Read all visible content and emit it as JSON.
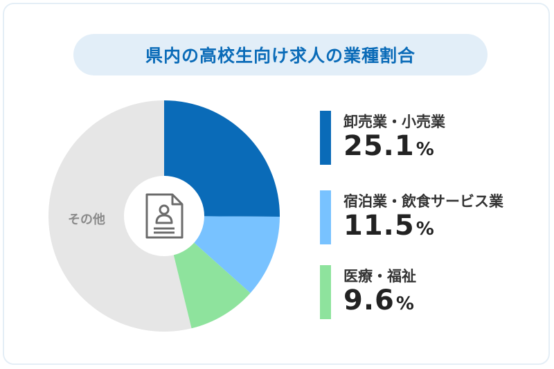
{
  "title": "県内の高校生向け求人の業種割合",
  "chart_data": {
    "type": "pie",
    "title": "県内の高校生向け求人の業種割合",
    "categories": [
      "卸売業・小売業",
      "宿泊業・飲食サービス業",
      "医療・福祉",
      "その他"
    ],
    "values": [
      25.1,
      11.5,
      9.6,
      53.8
    ],
    "unit": "%",
    "colors": [
      "#0a6bb8",
      "#78c2ff",
      "#8ee39d",
      "#e6e6e6"
    ],
    "legend_position": "right",
    "center_icon": "document-person-icon"
  },
  "legend": [
    {
      "label": "卸売業・小売業",
      "value": "25.1",
      "unit": "%",
      "color": "#0a6bb8"
    },
    {
      "label": "宿泊業・飲食サービス業",
      "value": "11.5",
      "unit": "%",
      "color": "#78c2ff"
    },
    {
      "label": "医療・福祉",
      "value": "9.6",
      "unit": "%",
      "color": "#8ee39d"
    }
  ],
  "other_label": "その他"
}
